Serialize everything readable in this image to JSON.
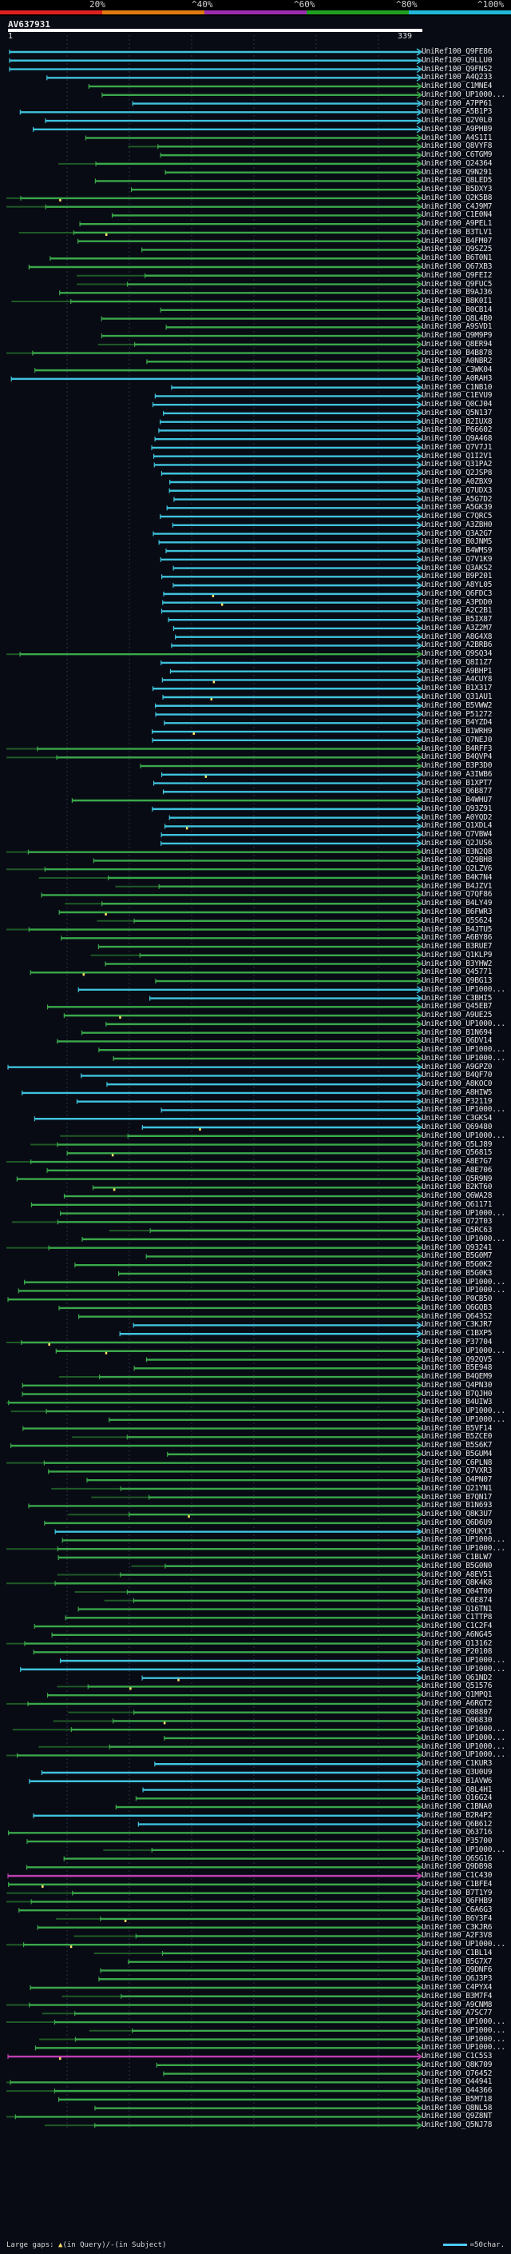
{
  "legend": {
    "labels": [
      "20%",
      "^40%",
      "^60%",
      "^80%",
      "^100%"
    ],
    "colors": [
      "#e02020",
      "#e07a10",
      "#9b2cb0",
      "#20a020",
      "#20b8d8"
    ]
  },
  "query": {
    "title": "AV637931",
    "start": "1",
    "end": "339"
  },
  "colors": {
    "cyan": "#3fc3dd",
    "green": "#3aa84a",
    "magenta": "#c040b0",
    "dark_green": "#1f5a26",
    "gap": "#ffe26a",
    "grid": "#2a3140"
  },
  "hits": [
    {
      "id": "UniRef100_Q9FE86",
      "c": "c"
    },
    {
      "id": "UniRef100_Q9LLU0",
      "c": "c"
    },
    {
      "id": "UniRef100_Q9FNS2",
      "c": "c"
    },
    {
      "id": "UniRef100_A4Q233",
      "c": "c"
    },
    {
      "id": "UniRef100_C1MNE4",
      "c": "g"
    },
    {
      "id": "UniRef100_UP1000...",
      "c": "g"
    },
    {
      "id": "UniRef100_A7PP61",
      "c": "c"
    },
    {
      "id": "UniRef100_A5B1P3",
      "c": "c"
    },
    {
      "id": "UniRef100_Q2V0L0",
      "c": "c"
    },
    {
      "id": "UniRef100_A9PHB9",
      "c": "c"
    },
    {
      "id": "UniRef100_A4S1I1",
      "c": "g"
    },
    {
      "id": "UniRef100_Q8VYF8",
      "c": "g"
    },
    {
      "id": "UniRef100_C6TGM9",
      "c": "g"
    },
    {
      "id": "UniRef100_Q24364",
      "c": "g"
    },
    {
      "id": "UniRef100_Q9N291",
      "c": "g"
    },
    {
      "id": "UniRef100_Q8LED5",
      "c": "g"
    },
    {
      "id": "UniRef100_B5DXY3",
      "c": "g"
    },
    {
      "id": "UniRef100_Q2K5B8",
      "c": "g"
    },
    {
      "id": "UniRef100_C4J9M7",
      "c": "g"
    },
    {
      "id": "UniRef100_C1E0N4",
      "c": "g"
    },
    {
      "id": "UniRef100_A9PEL1",
      "c": "g"
    },
    {
      "id": "UniRef100_B3TLV1",
      "c": "g"
    },
    {
      "id": "UniRef100_B4FM07",
      "c": "g"
    },
    {
      "id": "UniRef100_Q9SZ25",
      "c": "g"
    },
    {
      "id": "UniRef100_B6T0N1",
      "c": "g"
    },
    {
      "id": "UniRef100_Q67XB3",
      "c": "g"
    },
    {
      "id": "UniRef100_Q9FEI2",
      "c": "g"
    },
    {
      "id": "UniRef100_Q9FUC5",
      "c": "g"
    },
    {
      "id": "UniRef100_B9AJ36",
      "c": "g"
    },
    {
      "id": "UniRef100_B8K0I1",
      "c": "g"
    },
    {
      "id": "UniRef100_B0CB14",
      "c": "g"
    },
    {
      "id": "UniRef100_Q8L4B0",
      "c": "g"
    },
    {
      "id": "UniRef100_A9SVD1",
      "c": "g"
    },
    {
      "id": "UniRef100_Q9M9P9",
      "c": "g"
    },
    {
      "id": "UniRef100_Q8ER94",
      "c": "g"
    },
    {
      "id": "UniRef100_B4B878",
      "c": "g"
    },
    {
      "id": "UniRef100_A0NBR2",
      "c": "g"
    },
    {
      "id": "UniRef100_C3WK04",
      "c": "g"
    },
    {
      "id": "UniRef100_A0RAH3",
      "c": "c"
    },
    {
      "id": "UniRef100_C1NB10",
      "c": "c"
    },
    {
      "id": "UniRef100_C1EVU9",
      "c": "c"
    },
    {
      "id": "UniRef100_Q0CJ04",
      "c": "c"
    },
    {
      "id": "UniRef100_Q5N137",
      "c": "c"
    },
    {
      "id": "UniRef100_B2IUX8",
      "c": "c"
    },
    {
      "id": "UniRef100_P66602",
      "c": "c"
    },
    {
      "id": "UniRef100_Q9A468",
      "c": "c"
    },
    {
      "id": "UniRef100_Q7V7J1",
      "c": "c"
    },
    {
      "id": "UniRef100_Q1I2V1",
      "c": "c"
    },
    {
      "id": "UniRef100_Q31PA2",
      "c": "c"
    },
    {
      "id": "UniRef100_Q2JSP8",
      "c": "c"
    },
    {
      "id": "UniRef100_A0ZBX9",
      "c": "c"
    },
    {
      "id": "UniRef100_Q7UDX3",
      "c": "c"
    },
    {
      "id": "UniRef100_A5G7D2",
      "c": "c"
    },
    {
      "id": "UniRef100_A5GK39",
      "c": "c"
    },
    {
      "id": "UniRef100_C7QRC5",
      "c": "c"
    },
    {
      "id": "UniRef100_A3ZBH0",
      "c": "c"
    },
    {
      "id": "UniRef100_Q3A2G7",
      "c": "c"
    },
    {
      "id": "UniRef100_B0JNM5",
      "c": "c"
    },
    {
      "id": "UniRef100_B4WMS9",
      "c": "c"
    },
    {
      "id": "UniRef100_Q7V1K9",
      "c": "c"
    },
    {
      "id": "UniRef100_Q3AKS2",
      "c": "c"
    },
    {
      "id": "UniRef100_B9P201",
      "c": "c"
    },
    {
      "id": "UniRef100_A8YL05",
      "c": "c"
    },
    {
      "id": "UniRef100_Q6FDC3",
      "c": "c"
    },
    {
      "id": "UniRef100_A3PDD0",
      "c": "c"
    },
    {
      "id": "UniRef100_A2C2B1",
      "c": "c"
    },
    {
      "id": "UniRef100_B5IX87",
      "c": "c"
    },
    {
      "id": "UniRef100_A3Z2M7",
      "c": "c"
    },
    {
      "id": "UniRef100_A8G4X8",
      "c": "c"
    },
    {
      "id": "UniRef100_A2BRB6",
      "c": "c"
    },
    {
      "id": "UniRef100_Q9SQ34",
      "c": "g"
    },
    {
      "id": "UniRef100_Q8I1Z7",
      "c": "c"
    },
    {
      "id": "UniRef100_A9BHP1",
      "c": "c"
    },
    {
      "id": "UniRef100_A4CUY8",
      "c": "c"
    },
    {
      "id": "UniRef100_B1X317",
      "c": "c"
    },
    {
      "id": "UniRef100_Q31AU1",
      "c": "c"
    },
    {
      "id": "UniRef100_B5VWW2",
      "c": "c"
    },
    {
      "id": "UniRef100_P51272",
      "c": "c"
    },
    {
      "id": "UniRef100_B4YZD4",
      "c": "c"
    },
    {
      "id": "UniRef100_B1WRH9",
      "c": "c"
    },
    {
      "id": "UniRef100_Q7NEJ0",
      "c": "c"
    },
    {
      "id": "UniRef100_B4RFF3",
      "c": "g"
    },
    {
      "id": "UniRef100_B4QVP4",
      "c": "g"
    },
    {
      "id": "UniRef100_B3P3D0",
      "c": "g"
    },
    {
      "id": "UniRef100_A3IWB6",
      "c": "c"
    },
    {
      "id": "UniRef100_B1XPT7",
      "c": "c"
    },
    {
      "id": "UniRef100_Q6B877",
      "c": "c"
    },
    {
      "id": "UniRef100_B4WHU7",
      "c": "g"
    },
    {
      "id": "UniRef100_Q93Z91",
      "c": "c"
    },
    {
      "id": "UniRef100_A0YQD2",
      "c": "c"
    },
    {
      "id": "UniRef100_Q1XDL4",
      "c": "c"
    },
    {
      "id": "UniRef100_Q7VBW4",
      "c": "c"
    },
    {
      "id": "UniRef100_Q2JUS6",
      "c": "c"
    },
    {
      "id": "UniRef100_B3N2Q8",
      "c": "g"
    },
    {
      "id": "UniRef100_Q29BH8",
      "c": "g"
    },
    {
      "id": "UniRef100_Q2LZV6",
      "c": "g"
    },
    {
      "id": "UniRef100_B4K7N4",
      "c": "g"
    },
    {
      "id": "UniRef100_B4JZV1",
      "c": "g"
    },
    {
      "id": "UniRef100_Q7QF86",
      "c": "g"
    },
    {
      "id": "UniRef100_B4LY49",
      "c": "g"
    },
    {
      "id": "UniRef100_B6FWR3",
      "c": "g"
    },
    {
      "id": "UniRef100_Q5S624",
      "c": "g"
    },
    {
      "id": "UniRef100_B4JTU5",
      "c": "g"
    },
    {
      "id": "UniRef100_A6BY86",
      "c": "g"
    },
    {
      "id": "UniRef100_B3RUE7",
      "c": "g"
    },
    {
      "id": "UniRef100_Q1KLP9",
      "c": "g"
    },
    {
      "id": "UniRef100_B3YHW2",
      "c": "g"
    },
    {
      "id": "UniRef100_Q45771",
      "c": "g"
    },
    {
      "id": "UniRef100_Q9BG13",
      "c": "g"
    },
    {
      "id": "UniRef100_UP1000...",
      "c": "c"
    },
    {
      "id": "UniRef100_C3BHI5",
      "c": "c"
    },
    {
      "id": "UniRef100_Q45EB7",
      "c": "g"
    },
    {
      "id": "UniRef100_A9UE25",
      "c": "g"
    },
    {
      "id": "UniRef100_UP1000...",
      "c": "g"
    },
    {
      "id": "UniRef100_B1N694",
      "c": "g"
    },
    {
      "id": "UniRef100_Q6DV14",
      "c": "g"
    },
    {
      "id": "UniRef100_UP1000...",
      "c": "g"
    },
    {
      "id": "UniRef100_UP1000...",
      "c": "g"
    },
    {
      "id": "UniRef100_A9GPZ0",
      "c": "c"
    },
    {
      "id": "UniRef100_B4QF70",
      "c": "c"
    },
    {
      "id": "UniRef100_A8KOC0",
      "c": "c"
    },
    {
      "id": "UniRef100_A8HIW5",
      "c": "c"
    },
    {
      "id": "UniRef100_P32119",
      "c": "c"
    },
    {
      "id": "UniRef100_UP1000...",
      "c": "c"
    },
    {
      "id": "UniRef100_C3GKS4",
      "c": "c"
    },
    {
      "id": "UniRef100_Q69480",
      "c": "c"
    },
    {
      "id": "UniRef100_UP1000...",
      "c": "g"
    },
    {
      "id": "UniRef100_Q5LJ89",
      "c": "g"
    },
    {
      "id": "UniRef100_Q56815",
      "c": "g"
    },
    {
      "id": "UniRef100_A8E7G7",
      "c": "g"
    },
    {
      "id": "UniRef100_A8E706",
      "c": "g"
    },
    {
      "id": "UniRef100_Q5R9N9",
      "c": "g"
    },
    {
      "id": "UniRef100_B2KT60",
      "c": "g"
    },
    {
      "id": "UniRef100_Q6WA28",
      "c": "g"
    },
    {
      "id": "UniRef100_Q61171",
      "c": "g"
    },
    {
      "id": "UniRef100_UP1000...",
      "c": "g"
    },
    {
      "id": "UniRef100_Q72T03",
      "c": "g"
    },
    {
      "id": "UniRef100_Q5RC63",
      "c": "g"
    },
    {
      "id": "UniRef100_UP1000...",
      "c": "g"
    },
    {
      "id": "UniRef100_Q93241",
      "c": "g"
    },
    {
      "id": "UniRef100_B5G0M7",
      "c": "g"
    },
    {
      "id": "UniRef100_B5G0K2",
      "c": "g"
    },
    {
      "id": "UniRef100_B5G0K3",
      "c": "g"
    },
    {
      "id": "UniRef100_UP1000...",
      "c": "g"
    },
    {
      "id": "UniRef100_UP1000...",
      "c": "g"
    },
    {
      "id": "UniRef100_P0CB50",
      "c": "g"
    },
    {
      "id": "UniRef100_Q6GQB3",
      "c": "g"
    },
    {
      "id": "UniRef100_Q643S2",
      "c": "g"
    },
    {
      "id": "UniRef100_C3KJR7",
      "c": "c"
    },
    {
      "id": "UniRef100_C1BXP5",
      "c": "c"
    },
    {
      "id": "UniRef100_P37704",
      "c": "g"
    },
    {
      "id": "UniRef100_UP1000...",
      "c": "g"
    },
    {
      "id": "UniRef100_Q92QV5",
      "c": "g"
    },
    {
      "id": "UniRef100_B5E948",
      "c": "g"
    },
    {
      "id": "UniRef100_B4QEM9",
      "c": "g"
    },
    {
      "id": "UniRef100_Q4PN30",
      "c": "g"
    },
    {
      "id": "UniRef100_B7QJH0",
      "c": "g"
    },
    {
      "id": "UniRef100_B4UIW3",
      "c": "g"
    },
    {
      "id": "UniRef100_UP1000...",
      "c": "g"
    },
    {
      "id": "UniRef100_UP1000...",
      "c": "g"
    },
    {
      "id": "UniRef100_B5VF14",
      "c": "g"
    },
    {
      "id": "UniRef100_B5ZCE0",
      "c": "g"
    },
    {
      "id": "UniRef100_B5S6K7",
      "c": "g"
    },
    {
      "id": "UniRef100_B5GUM4",
      "c": "g"
    },
    {
      "id": "UniRef100_C6PLN8",
      "c": "g"
    },
    {
      "id": "UniRef100_Q7VXR3",
      "c": "g"
    },
    {
      "id": "UniRef100_Q4PN07",
      "c": "g"
    },
    {
      "id": "UniRef100_Q21YN1",
      "c": "g"
    },
    {
      "id": "UniRef100_B7QN17",
      "c": "g"
    },
    {
      "id": "UniRef100_B1N693",
      "c": "g"
    },
    {
      "id": "UniRef100_Q8K3U7",
      "c": "g"
    },
    {
      "id": "UniRef100_Q6D6U9",
      "c": "g"
    },
    {
      "id": "UniRef100_Q9UKY1",
      "c": "c"
    },
    {
      "id": "UniRef100_UP1000...",
      "c": "g"
    },
    {
      "id": "UniRef100_UP1000...",
      "c": "g"
    },
    {
      "id": "UniRef100_C1BLW7",
      "c": "g"
    },
    {
      "id": "UniRef100_B5G0N0",
      "c": "g"
    },
    {
      "id": "UniRef100_A8EV51",
      "c": "g"
    },
    {
      "id": "UniRef100_Q8K4K8",
      "c": "g"
    },
    {
      "id": "UniRef100_Q04T00",
      "c": "g"
    },
    {
      "id": "UniRef100_C6E874",
      "c": "g"
    },
    {
      "id": "UniRef100_Q16TN1",
      "c": "g"
    },
    {
      "id": "UniRef100_C1TTP8",
      "c": "g"
    },
    {
      "id": "UniRef100_C1C2F4",
      "c": "g"
    },
    {
      "id": "UniRef100_A6NG45",
      "c": "g"
    },
    {
      "id": "UniRef100_Q13162",
      "c": "g"
    },
    {
      "id": "UniRef100_P20108",
      "c": "g"
    },
    {
      "id": "UniRef100_UP1000...",
      "c": "c"
    },
    {
      "id": "UniRef100_UP1000...",
      "c": "c"
    },
    {
      "id": "UniRef100_Q61ND2",
      "c": "c"
    },
    {
      "id": "UniRef100_Q51576",
      "c": "g"
    },
    {
      "id": "UniRef100_Q1MPQ1",
      "c": "g"
    },
    {
      "id": "UniRef100_A6RGT2",
      "c": "g"
    },
    {
      "id": "UniRef100_Q08807",
      "c": "g"
    },
    {
      "id": "UniRef100_Q06830",
      "c": "g"
    },
    {
      "id": "UniRef100_UP1000...",
      "c": "g"
    },
    {
      "id": "UniRef100_UP1000...",
      "c": "g"
    },
    {
      "id": "UniRef100_UP1000...",
      "c": "g"
    },
    {
      "id": "UniRef100_UP1000...",
      "c": "g"
    },
    {
      "id": "UniRef100_C1KUR3",
      "c": "c"
    },
    {
      "id": "UniRef100_Q3U0U9",
      "c": "c"
    },
    {
      "id": "UniRef100_B1AVW6",
      "c": "c"
    },
    {
      "id": "UniRef100_Q8L4H1",
      "c": "c"
    },
    {
      "id": "UniRef100_Q16G24",
      "c": "g"
    },
    {
      "id": "UniRef100_C1BNA0",
      "c": "g"
    },
    {
      "id": "UniRef100_B2R4P2",
      "c": "c"
    },
    {
      "id": "UniRef100_Q6B612",
      "c": "c"
    },
    {
      "id": "UniRef100_Q63716",
      "c": "g"
    },
    {
      "id": "UniRef100_P35700",
      "c": "g"
    },
    {
      "id": "UniRef100_UP1000...",
      "c": "g"
    },
    {
      "id": "UniRef100_Q6SG16",
      "c": "g"
    },
    {
      "id": "UniRef100_Q9DB98",
      "c": "g"
    },
    {
      "id": "UniRef100_C1C430",
      "c": "m"
    },
    {
      "id": "UniRef100_C1BFE4",
      "c": "g"
    },
    {
      "id": "UniRef100_B7T1Y9",
      "c": "g"
    },
    {
      "id": "UniRef100_Q6FHB9",
      "c": "g"
    },
    {
      "id": "UniRef100_C6A6G3",
      "c": "g"
    },
    {
      "id": "UniRef100_B6Y3F4",
      "c": "g"
    },
    {
      "id": "UniRef100_C3KJR6",
      "c": "g"
    },
    {
      "id": "UniRef100_A2F3V8",
      "c": "g"
    },
    {
      "id": "UniRef100_UP1000...",
      "c": "g"
    },
    {
      "id": "UniRef100_C1BL14",
      "c": "g"
    },
    {
      "id": "UniRef100_B5G7X7",
      "c": "g"
    },
    {
      "id": "UniRef100_Q9DNF6",
      "c": "g"
    },
    {
      "id": "UniRef100_Q6J3P3",
      "c": "g"
    },
    {
      "id": "UniRef100_C4PYX4",
      "c": "g"
    },
    {
      "id": "UniRef100_B3M7F4",
      "c": "g"
    },
    {
      "id": "UniRef100_A9CNM8",
      "c": "g"
    },
    {
      "id": "UniRef100_A7SC77",
      "c": "g"
    },
    {
      "id": "UniRef100_UP1000...",
      "c": "g"
    },
    {
      "id": "UniRef100_UP1000...",
      "c": "g"
    },
    {
      "id": "UniRef100_UP1000...",
      "c": "g"
    },
    {
      "id": "UniRef100_UP1000...",
      "c": "g"
    },
    {
      "id": "UniRef100_C1C5S3",
      "c": "m"
    },
    {
      "id": "UniRef100_Q8K709",
      "c": "g"
    },
    {
      "id": "UniRef100_Q76452",
      "c": "g"
    },
    {
      "id": "UniRef100_Q44941",
      "c": "g"
    },
    {
      "id": "UniRef100_Q44366",
      "c": "g"
    },
    {
      "id": "UniRef100_B5M718",
      "c": "g"
    },
    {
      "id": "UniRef100_Q8NL58",
      "c": "g"
    },
    {
      "id": "UniRef100_Q9Z8NT",
      "c": "g"
    },
    {
      "id": "UniRef100_Q5NJ78",
      "c": "g"
    }
  ],
  "footer": {
    "gaps_text": "Large gaps:",
    "query_gap": "(in Query)/",
    "subject_gap": "-(in Subject)",
    "scale_text": "=50char."
  }
}
